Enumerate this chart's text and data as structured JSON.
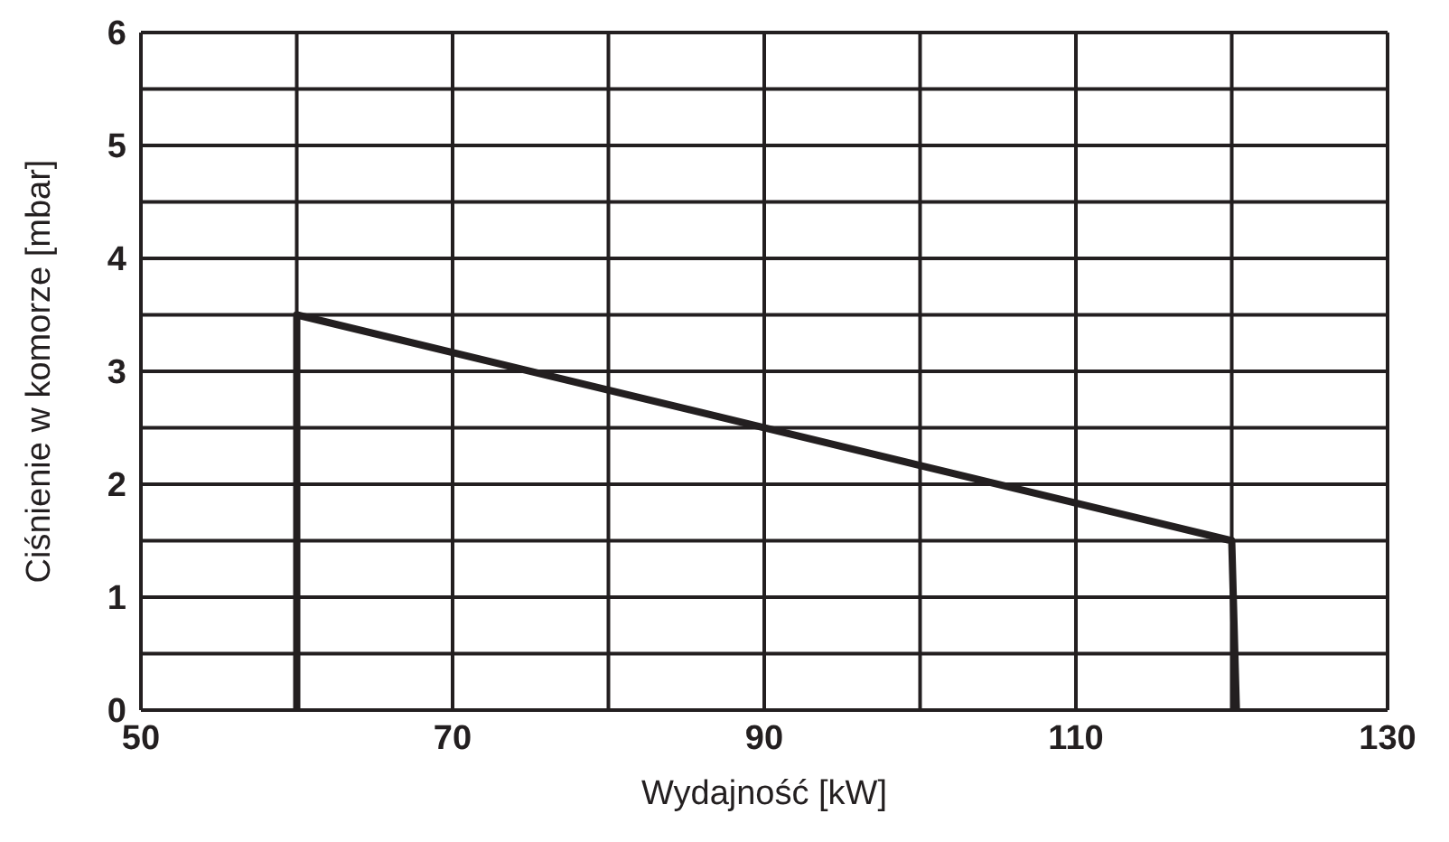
{
  "chart_data": {
    "type": "line",
    "xlabel": "Wydajność [kW]",
    "ylabel": "Ciśnienie w komorze [mbar]",
    "xlim": [
      50,
      130
    ],
    "xticks": [
      50,
      {
        "value": 60,
        "label": null
      },
      70,
      {
        "value": 80,
        "label": null
      },
      90,
      {
        "value": 100,
        "label": null
      },
      110,
      {
        "value": 120,
        "label": null
      },
      130
    ],
    "ylim": [
      0,
      6
    ],
    "yticks": [
      0,
      {
        "value": 0.5,
        "label": null
      },
      1,
      {
        "value": 1.5,
        "label": null
      },
      2,
      {
        "value": 2.5,
        "label": null
      },
      3,
      {
        "value": 3.5,
        "label": null
      },
      4,
      {
        "value": 4.5,
        "label": null
      },
      5,
      {
        "value": 5.5,
        "label": null
      },
      6
    ],
    "grid": true,
    "legend": false,
    "marker": "none",
    "line_style": "solid",
    "series": [
      {
        "color": "#231f20",
        "x": [
          60,
          60,
          120,
          120.3
        ],
        "values": [
          0,
          3.5,
          1.5,
          0
        ]
      }
    ]
  }
}
